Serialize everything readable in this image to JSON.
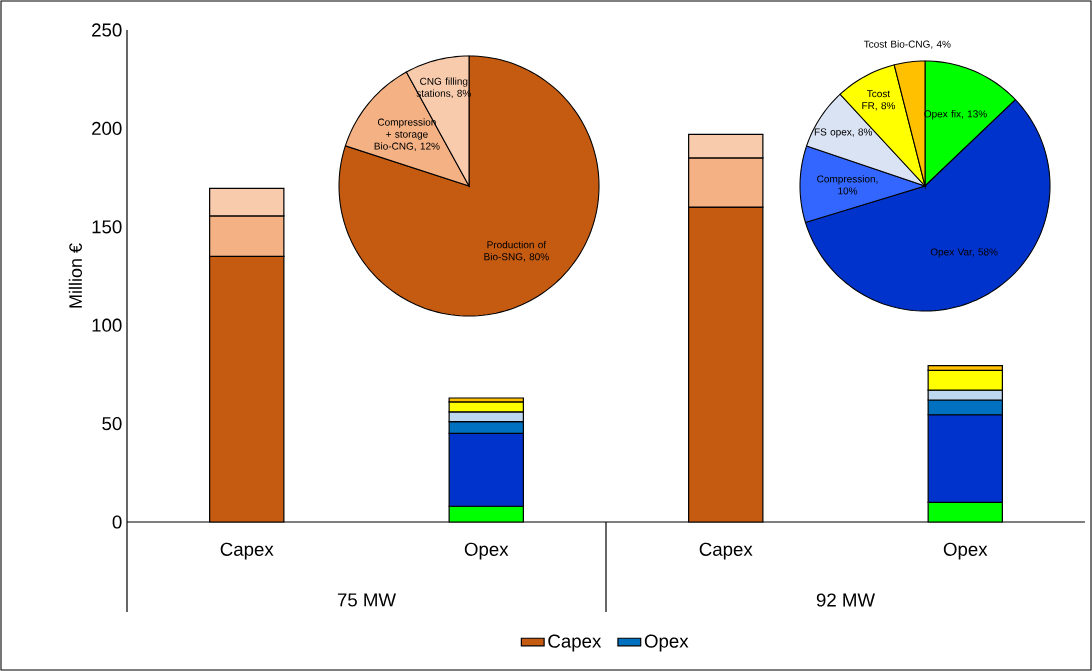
{
  "chart_data": [
    {
      "type": "bar",
      "stacked": true,
      "ylabel": "Million €",
      "categories": [
        "Capex",
        "Opex",
        "Capex",
        "Opex"
      ],
      "annotations": [
        "75 MW",
        "92 MW"
      ],
      "ylim": [
        0,
        250
      ],
      "yticks": [
        0,
        50,
        100,
        150,
        200,
        250
      ],
      "legend": "bottom",
      "series": [
        {
          "name": "Capex",
          "color": "#c55a11",
          "values": [
            135,
            null,
            160,
            null
          ]
        },
        {
          "color": "#f4b183",
          "values": [
            20.5,
            null,
            25,
            null
          ]
        },
        {
          "color": "#f8cbad",
          "values": [
            14,
            null,
            12,
            null
          ]
        },
        {
          "color": "#00ff00",
          "values": [
            null,
            8,
            null,
            10
          ]
        },
        {
          "color": "#0033cc",
          "values": [
            null,
            37,
            null,
            44.5
          ]
        },
        {
          "name": "Opex",
          "color": "#0070c0",
          "values": [
            null,
            6,
            null,
            7.5
          ]
        },
        {
          "color": "#bdd7ee",
          "values": [
            null,
            5,
            null,
            5
          ]
        },
        {
          "color": "#ffff00",
          "values": [
            null,
            5,
            null,
            10
          ]
        },
        {
          "color": "#ffc000",
          "values": [
            null,
            2,
            null,
            2.5
          ]
        }
      ]
    },
    {
      "type": "pie",
      "categories": [
        "Production of Bio-SNG, 80%",
        "Compression + storage Bio-CNG, 12%",
        "CNG filling stations, 8%"
      ],
      "values": [
        80,
        12,
        8
      ],
      "colors": [
        "#c55a11",
        "#f4b183",
        "#f8cbad"
      ]
    },
    {
      "type": "pie",
      "categories": [
        "Opex fix, 13%",
        "Opex Var, 58%",
        "Compression, 10%",
        "FS opex, 8%",
        "Tcost FR, 8%",
        "Tcost Bio-CNG, 4%"
      ],
      "values": [
        13,
        58,
        10,
        8,
        8,
        4
      ],
      "colors": [
        "#00ff00",
        "#0033cc",
        "#3366ff",
        "#dae3f3",
        "#ffff00",
        "#ffc000"
      ]
    }
  ]
}
